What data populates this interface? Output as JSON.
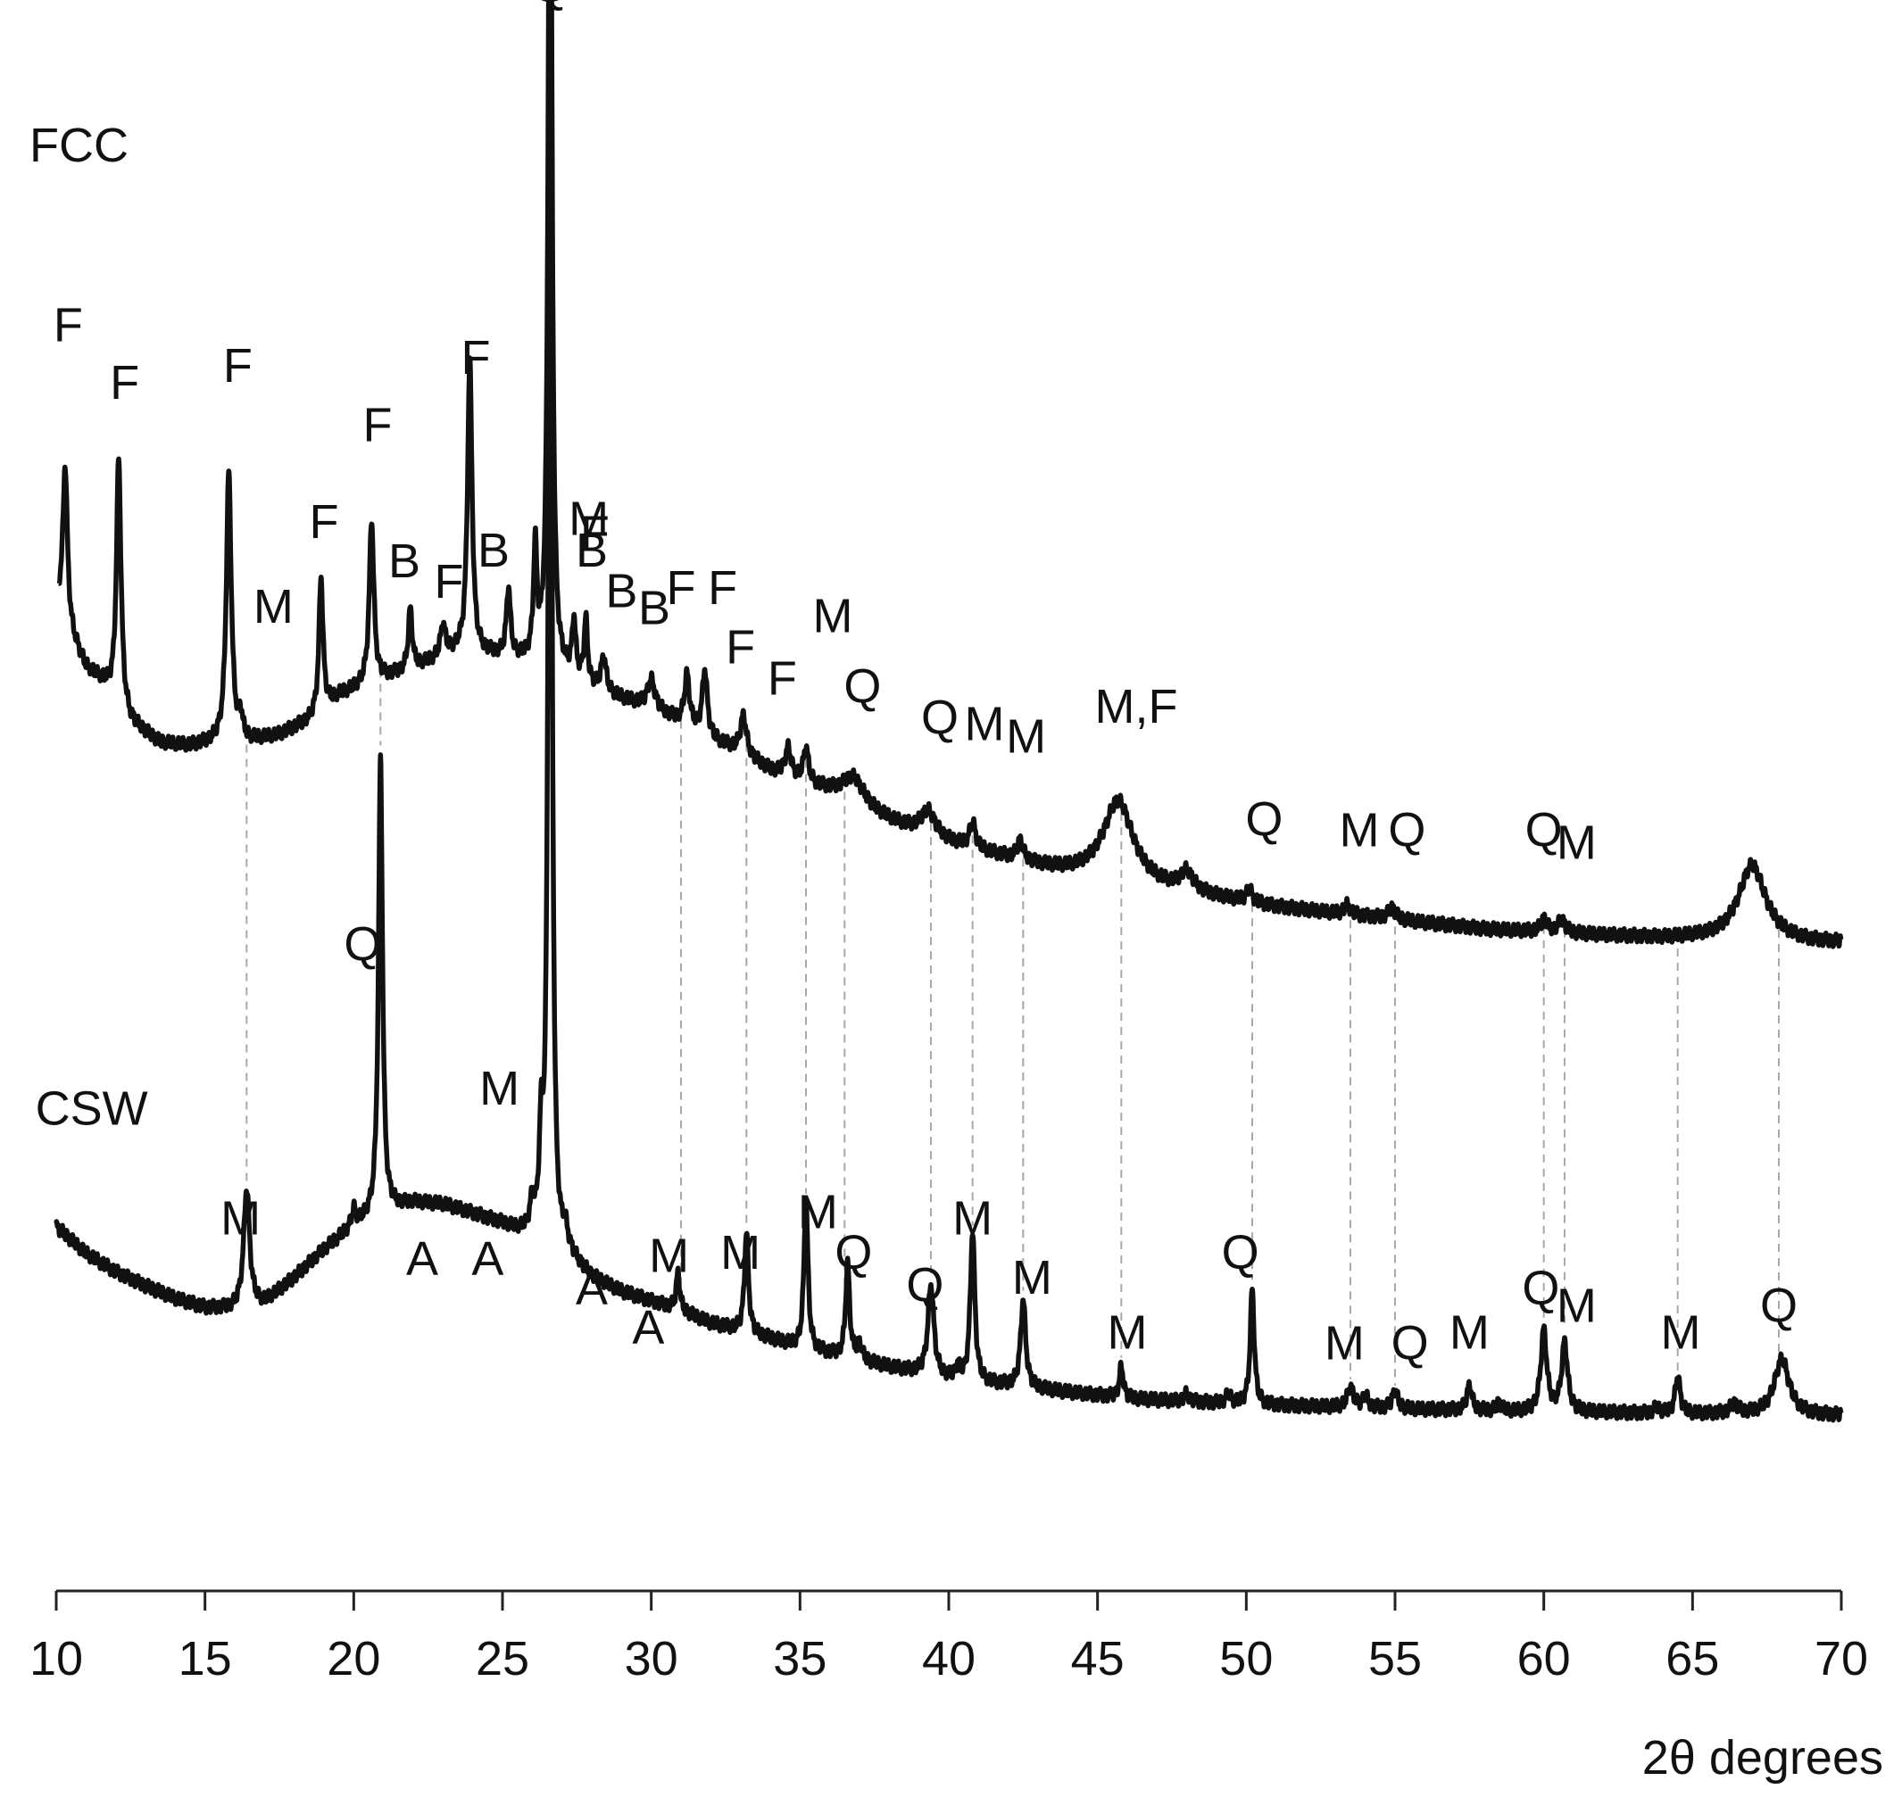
{
  "chart_data": {
    "type": "line",
    "title": "",
    "xlabel": "2θ degrees",
    "ylabel": "",
    "xlim": [
      10,
      70
    ],
    "ylim": [
      0,
      100
    ],
    "grid": false,
    "legend": "none",
    "xticks": [
      "10",
      "15",
      "20",
      "25",
      "30",
      "35",
      "40",
      "45",
      "50",
      "55",
      "60",
      "65",
      "70"
    ],
    "series": [
      {
        "name": "FCC",
        "baseline": [
          [
            10.1,
            63
          ],
          [
            10.5,
            61
          ],
          [
            11,
            59
          ],
          [
            11.6,
            58
          ],
          [
            12.5,
            55.5
          ],
          [
            13.5,
            54.2
          ],
          [
            14.5,
            54
          ],
          [
            15.3,
            54.2
          ],
          [
            16.5,
            54.3
          ],
          [
            17.5,
            54.7
          ],
          [
            18.5,
            55.6
          ],
          [
            19.5,
            57.2
          ],
          [
            20.5,
            58
          ],
          [
            21.5,
            58.6
          ],
          [
            22.5,
            59.3
          ],
          [
            23.5,
            60
          ],
          [
            24.5,
            59.8
          ],
          [
            25.5,
            59.5
          ],
          [
            26.3,
            59.2
          ],
          [
            27,
            58.6
          ],
          [
            28,
            57.7
          ],
          [
            29,
            57
          ],
          [
            30,
            56.4
          ],
          [
            31,
            55.5
          ],
          [
            32,
            54.4
          ],
          [
            33,
            53.6
          ],
          [
            34,
            52.4
          ],
          [
            35,
            51.7
          ],
          [
            36,
            51
          ],
          [
            37,
            50
          ],
          [
            38,
            49.2
          ],
          [
            39,
            48.4
          ],
          [
            40,
            47.8
          ],
          [
            41,
            47.3
          ],
          [
            42,
            46.8
          ],
          [
            43,
            46.3
          ],
          [
            44,
            45.9
          ],
          [
            45,
            45.6
          ],
          [
            46,
            45.2
          ],
          [
            47,
            44.9
          ],
          [
            48,
            44.6
          ],
          [
            49,
            44.3
          ],
          [
            50,
            44
          ],
          [
            51,
            43.7
          ],
          [
            52,
            43.5
          ],
          [
            53,
            43.3
          ],
          [
            54,
            43.1
          ],
          [
            55,
            42.9
          ],
          [
            56,
            42.7
          ],
          [
            57,
            42.5
          ],
          [
            58,
            42.3
          ],
          [
            59,
            42.2
          ],
          [
            60,
            42.1
          ],
          [
            61,
            42
          ],
          [
            62,
            41.9
          ],
          [
            63,
            41.8
          ],
          [
            64,
            41.7
          ],
          [
            65,
            41.7
          ],
          [
            66,
            41.6
          ],
          [
            67,
            41.6
          ],
          [
            68,
            41.5
          ],
          [
            69,
            41.4
          ],
          [
            70,
            41.4
          ]
        ],
        "peaks": [
          [
            10.3,
            10,
            0.09
          ],
          [
            12.1,
            15.8,
            0.09
          ],
          [
            15.8,
            17.2,
            0.1
          ],
          [
            16.2,
            1.4,
            0.08
          ],
          [
            18.9,
            8.6,
            0.08
          ],
          [
            20.6,
            10.4,
            0.09
          ],
          [
            21.9,
            3.8,
            0.08
          ],
          [
            23,
            2,
            0.1
          ],
          [
            23.9,
            18.6,
            0.09
          ],
          [
            25.2,
            4.4,
            0.08
          ],
          [
            26.1,
            7,
            0.07
          ],
          [
            26.6,
            66,
            0.07
          ],
          [
            27.4,
            3.6,
            0.07
          ],
          [
            27.8,
            4,
            0.07
          ],
          [
            28.4,
            2.2,
            0.1
          ],
          [
            30,
            1.8,
            0.15
          ],
          [
            31.2,
            3.2,
            0.1
          ],
          [
            31.8,
            4.2,
            0.1
          ],
          [
            33.1,
            2.4,
            0.12
          ],
          [
            34.6,
            1.8,
            0.12
          ],
          [
            35.2,
            2.2,
            0.1
          ],
          [
            36.8,
            1.8,
            0.45
          ],
          [
            39.3,
            1.6,
            0.3
          ],
          [
            40.8,
            1.6,
            0.12
          ],
          [
            42.4,
            1.2,
            0.12
          ],
          [
            45.7,
            5.2,
            0.6
          ],
          [
            48,
            1.2,
            0.25
          ],
          [
            50.1,
            0.8,
            0.12
          ],
          [
            53.4,
            0.6,
            0.12
          ],
          [
            54.9,
            0.7,
            0.15
          ],
          [
            60,
            0.8,
            0.12
          ],
          [
            60.6,
            0.8,
            0.15
          ],
          [
            67,
            4.8,
            0.55
          ]
        ]
      },
      {
        "name": "CSW",
        "baseline": [
          [
            10,
            23.3
          ],
          [
            11,
            21.6
          ],
          [
            12,
            20.4
          ],
          [
            13,
            19.5
          ],
          [
            14,
            18.7
          ],
          [
            15,
            18.1
          ],
          [
            16,
            18
          ],
          [
            17,
            18.4
          ],
          [
            18,
            20
          ],
          [
            19,
            21.8
          ],
          [
            20,
            23.3
          ],
          [
            21,
            24.2
          ],
          [
            22,
            24.8
          ],
          [
            23,
            24.7
          ],
          [
            24,
            24.1
          ],
          [
            25,
            23.4
          ],
          [
            25.7,
            22.7
          ],
          [
            26.6,
            21
          ],
          [
            27.2,
            21.3
          ],
          [
            28,
            20
          ],
          [
            29,
            19.1
          ],
          [
            30,
            18.5
          ],
          [
            31,
            17.9
          ],
          [
            32,
            17.1
          ],
          [
            33,
            16.6
          ],
          [
            34,
            16.1
          ],
          [
            35,
            15.5
          ],
          [
            36,
            15.1
          ],
          [
            37,
            14.7
          ],
          [
            38,
            14.3
          ],
          [
            39,
            13.9
          ],
          [
            40,
            13.5
          ],
          [
            41,
            13.3
          ],
          [
            42,
            13.1
          ],
          [
            43,
            12.9
          ],
          [
            44,
            12.7
          ],
          [
            45,
            12.5
          ],
          [
            46,
            12.3
          ],
          [
            47,
            12.2
          ],
          [
            48,
            12.1
          ],
          [
            49,
            12
          ],
          [
            50,
            11.9
          ],
          [
            52,
            11.8
          ],
          [
            54,
            11.7
          ],
          [
            56,
            11.6
          ],
          [
            58,
            11.5
          ],
          [
            60,
            11.4
          ],
          [
            62,
            11.4
          ],
          [
            64,
            11.3
          ],
          [
            66,
            11.3
          ],
          [
            68,
            11.2
          ],
          [
            70,
            11.2
          ]
        ],
        "peaks": [
          [
            16.4,
            7.6,
            0.12
          ],
          [
            20,
            1,
            0.08
          ],
          [
            20.9,
            29,
            0.08
          ],
          [
            26,
            2,
            0.1
          ],
          [
            26.3,
            6,
            0.08
          ],
          [
            26.6,
            85,
            0.07
          ],
          [
            27.1,
            1.2,
            0.1
          ],
          [
            30.9,
            2.4,
            0.07
          ],
          [
            33.2,
            6.4,
            0.08
          ],
          [
            35.2,
            9.6,
            0.08
          ],
          [
            36.6,
            6,
            0.08
          ],
          [
            37,
            1,
            0.1
          ],
          [
            39.4,
            5.8,
            0.12
          ],
          [
            40.3,
            0.8,
            0.08
          ],
          [
            40.8,
            9.6,
            0.09
          ],
          [
            42.5,
            5.6,
            0.1
          ],
          [
            45.8,
            2,
            0.08
          ],
          [
            48,
            0.5,
            0.1
          ],
          [
            49.4,
            0.6,
            0.1
          ],
          [
            50.2,
            7.4,
            0.08
          ],
          [
            53.5,
            1.3,
            0.12
          ],
          [
            54,
            0.8,
            0.1
          ],
          [
            55,
            1.2,
            0.1
          ],
          [
            57.5,
            1.6,
            0.1
          ],
          [
            58.5,
            0.5,
            0.1
          ],
          [
            60,
            5.2,
            0.12
          ],
          [
            60.7,
            4.4,
            0.12
          ],
          [
            63.8,
            0.4,
            0.12
          ],
          [
            64.5,
            2.4,
            0.1
          ],
          [
            66.4,
            0.6,
            0.15
          ],
          [
            68,
            3.6,
            0.3
          ]
        ]
      }
    ],
    "guide_lines_2theta": [
      16.4,
      20.9,
      31,
      33.2,
      35.2,
      36.5,
      39.4,
      40.8,
      42.5,
      45.8,
      50.2,
      53.5,
      55,
      60,
      60.7,
      64.5,
      67.9
    ],
    "annotations": [
      {
        "text": "Q",
        "x": 26.6,
        "y": 101.6
      },
      {
        "text": "FCC",
        "x": 9.1,
        "y": 91.4
      },
      {
        "text": "F",
        "x": 10.4,
        "y": 79.9
      },
      {
        "text": "F",
        "x": 12.3,
        "y": 76.2
      },
      {
        "text": "F",
        "x": 16.1,
        "y": 77.3
      },
      {
        "text": "F",
        "x": 20.8,
        "y": 73.5
      },
      {
        "text": "F",
        "x": 24.1,
        "y": 77.8
      },
      {
        "text": "F",
        "x": 19,
        "y": 67.3
      },
      {
        "text": "M",
        "x": 27.9,
        "y": 67.5
      },
      {
        "text": "M",
        "x": 17.3,
        "y": 61.9
      },
      {
        "text": "B",
        "x": 21.7,
        "y": 64.8
      },
      {
        "text": "F",
        "x": 23.2,
        "y": 63.5
      },
      {
        "text": "B",
        "x": 24.7,
        "y": 65.5
      },
      {
        "text": "B",
        "x": 28,
        "y": 65.5
      },
      {
        "text": "F",
        "x": 28.1,
        "y": 66.6
      },
      {
        "text": "B",
        "x": 29,
        "y": 62.9
      },
      {
        "text": "B",
        "x": 30.1,
        "y": 61.8
      },
      {
        "text": "F",
        "x": 31,
        "y": 63.1
      },
      {
        "text": "F",
        "x": 32.4,
        "y": 63.1
      },
      {
        "text": "M",
        "x": 36.1,
        "y": 61.3
      },
      {
        "text": "F",
        "x": 33,
        "y": 59.3
      },
      {
        "text": "F",
        "x": 34.4,
        "y": 57.3
      },
      {
        "text": "Q",
        "x": 37.1,
        "y": 56.8
      },
      {
        "text": "Q",
        "x": 39.7,
        "y": 54.8
      },
      {
        "text": "M",
        "x": 41.2,
        "y": 54.4
      },
      {
        "text": "M",
        "x": 42.6,
        "y": 53.6
      },
      {
        "text": "M,F",
        "x": 46.3,
        "y": 55.5
      },
      {
        "text": "Q",
        "x": 50.6,
        "y": 48.3
      },
      {
        "text": "M",
        "x": 53.8,
        "y": 47.6
      },
      {
        "text": "Q",
        "x": 55.4,
        "y": 47.6
      },
      {
        "text": "Q",
        "x": 60,
        "y": 47.6
      },
      {
        "text": "M",
        "x": 61.1,
        "y": 46.8
      },
      {
        "text": "Q",
        "x": 20.3,
        "y": 40.3
      },
      {
        "text": "CSW",
        "x": 9.3,
        "y": 29.8
      },
      {
        "text": "M",
        "x": 24.9,
        "y": 31.1
      },
      {
        "text": "M",
        "x": 16.2,
        "y": 22.8
      },
      {
        "text": "A",
        "x": 22.3,
        "y": 20.2
      },
      {
        "text": "A",
        "x": 24.5,
        "y": 20.2
      },
      {
        "text": "A",
        "x": 28,
        "y": 18.3
      },
      {
        "text": "A",
        "x": 29.9,
        "y": 15.8
      },
      {
        "text": "M",
        "x": 30.6,
        "y": 20.4
      },
      {
        "text": "M",
        "x": 33,
        "y": 20.6
      },
      {
        "text": "M",
        "x": 35.6,
        "y": 23.2
      },
      {
        "text": "Q",
        "x": 36.8,
        "y": 20.6
      },
      {
        "text": "Q",
        "x": 39.2,
        "y": 18.5
      },
      {
        "text": "M",
        "x": 40.8,
        "y": 22.8
      },
      {
        "text": "M",
        "x": 42.8,
        "y": 19
      },
      {
        "text": "M",
        "x": 46,
        "y": 15.5
      },
      {
        "text": "Q",
        "x": 49.8,
        "y": 20.6
      },
      {
        "text": "M",
        "x": 53.3,
        "y": 14.8
      },
      {
        "text": "Q",
        "x": 55.5,
        "y": 14.8
      },
      {
        "text": "M",
        "x": 57.5,
        "y": 15.5
      },
      {
        "text": "Q",
        "x": 59.9,
        "y": 18.3
      },
      {
        "text": "M",
        "x": 61.1,
        "y": 17.2
      },
      {
        "text": "M",
        "x": 64.6,
        "y": 15.5
      },
      {
        "text": "Q",
        "x": 67.9,
        "y": 17.2
      }
    ]
  },
  "colors": {
    "trace": "#111111",
    "guide": "#a8a8a8",
    "axis": "#222222",
    "background": "#ffffff"
  }
}
